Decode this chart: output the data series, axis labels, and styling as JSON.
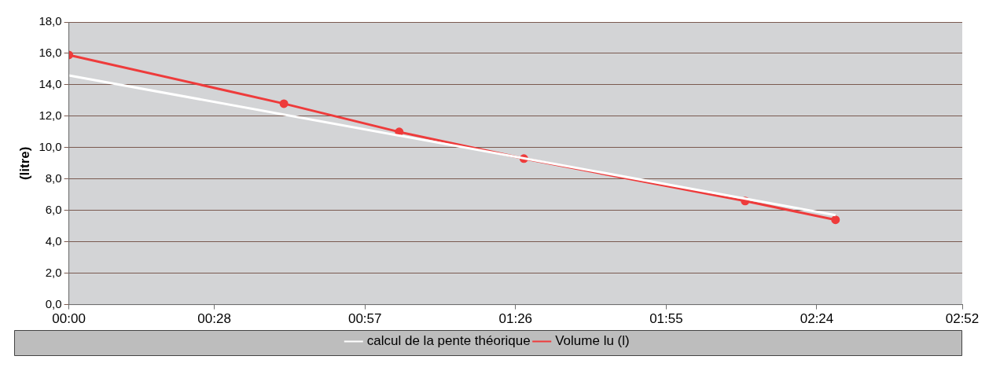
{
  "chart_data": {
    "type": "line",
    "ylabel": "(litre)",
    "xlim": [
      0,
      2.8667
    ],
    "xticks": [
      {
        "value": 0,
        "label": "00:00"
      },
      {
        "value": 0.4667,
        "label": "00:28"
      },
      {
        "value": 0.95,
        "label": "00:57"
      },
      {
        "value": 1.4333,
        "label": "01:26"
      },
      {
        "value": 1.9167,
        "label": "01:55"
      },
      {
        "value": 2.4,
        "label": "02:24"
      },
      {
        "value": 2.8667,
        "label": "02:52"
      }
    ],
    "ylim": [
      0,
      18
    ],
    "yticks": [
      {
        "value": 0,
        "label": "0,0"
      },
      {
        "value": 2,
        "label": "2,0"
      },
      {
        "value": 4,
        "label": "4,0"
      },
      {
        "value": 6,
        "label": "6,0"
      },
      {
        "value": 8,
        "label": "8,0"
      },
      {
        "value": 10,
        "label": "10,0"
      },
      {
        "value": 12,
        "label": "12,0"
      },
      {
        "value": 14,
        "label": "14,0"
      },
      {
        "value": 16,
        "label": "16,0"
      },
      {
        "value": 18,
        "label": "18,0"
      }
    ],
    "grid": "y",
    "legend": "bottom",
    "series": [
      {
        "name": "calcul de la pente théorique",
        "color": "#ffffff",
        "x": [
          0,
          2.46
        ],
        "values": [
          14.6,
          5.7
        ],
        "marker": "none"
      },
      {
        "name": "Volume lu (l)",
        "color": "#ee3b3b",
        "x": [
          0,
          0.69,
          1.06,
          1.46,
          2.17,
          2.46
        ],
        "values": [
          15.9,
          12.8,
          11.0,
          9.3,
          6.6,
          5.4
        ],
        "marker": "circle"
      }
    ]
  }
}
